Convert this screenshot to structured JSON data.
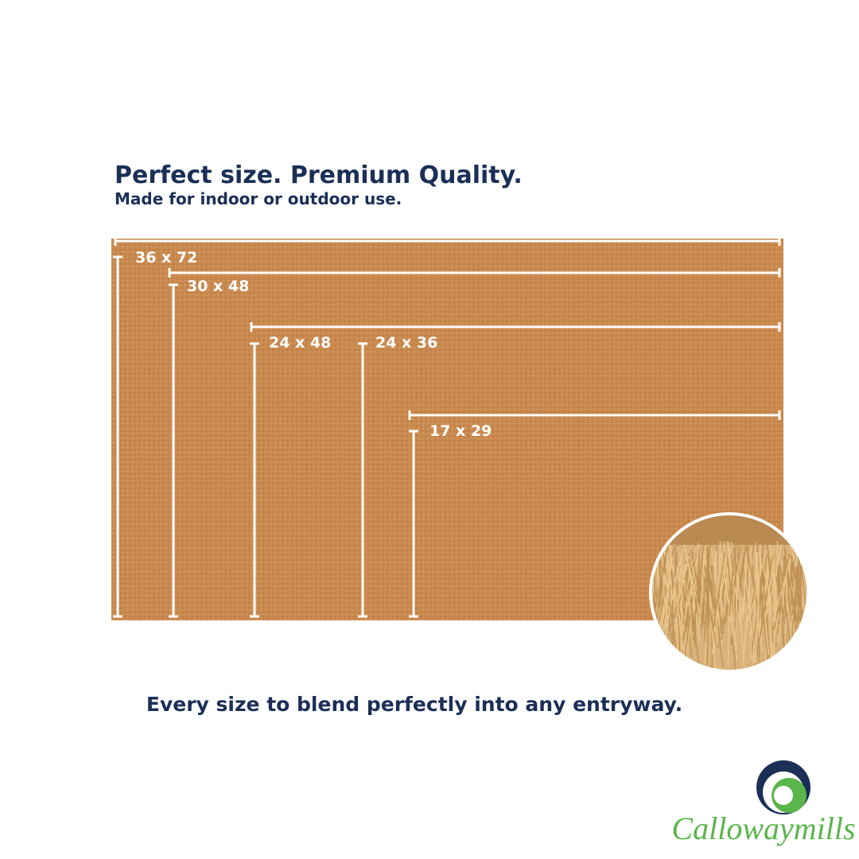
{
  "header": {
    "title": "Perfect size. Premium Quality.",
    "subtitle": "Made for indoor or outdoor use."
  },
  "sizes": [
    "36 x 72",
    "30 x 48",
    "24 x 48",
    "24 x 36",
    "17 x 29"
  ],
  "tagline": "Every size to blend perfectly into any entryway.",
  "logo": {
    "name": "Callowaymills"
  }
}
